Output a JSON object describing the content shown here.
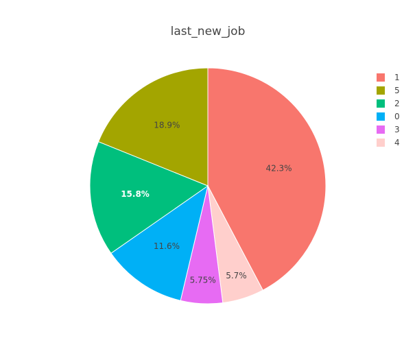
{
  "chart_data": {
    "type": "pie",
    "title": "last_new_job",
    "slices": [
      {
        "label": "1",
        "value": 42.3,
        "text": "42.3%",
        "color": "#F8766D",
        "text_color": "#444444"
      },
      {
        "label": "4",
        "value": 5.7,
        "text": "5.7%",
        "color": "#FFCFCC",
        "text_color": "#444444"
      },
      {
        "label": "3",
        "value": 5.75,
        "text": "5.75%",
        "color": "#E76BF3",
        "text_color": "#444444"
      },
      {
        "label": "0",
        "value": 11.6,
        "text": "11.6%",
        "color": "#00B0F6",
        "text_color": "#444444"
      },
      {
        "label": "2",
        "value": 15.8,
        "text": "15.8%",
        "color": "#00BF7D",
        "text_color": "#ffffff"
      },
      {
        "label": "5",
        "value": 18.9,
        "text": "18.9%",
        "color": "#A3A500",
        "text_color": "#444444"
      }
    ],
    "legend": {
      "position": "right",
      "order": [
        "1",
        "5",
        "2",
        "0",
        "3",
        "4"
      ]
    },
    "direction": "clockwise",
    "start": "top"
  }
}
